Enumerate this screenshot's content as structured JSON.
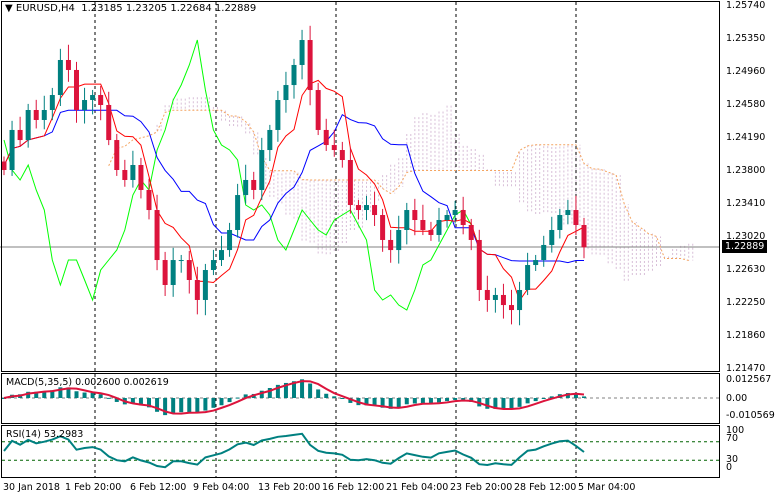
{
  "header": {
    "symbol": "EURUSD,H4",
    "open": "1.23185",
    "high": "1.23205",
    "low": "1.22684",
    "close": "1.22889",
    "menu_icon": "triangle-down-icon"
  },
  "price_axis": [
    "1.25740",
    "1.25350",
    "1.24960",
    "1.24580",
    "1.24190",
    "1.23800",
    "1.23410",
    "1.23020",
    "1.22630",
    "1.22250",
    "1.21860",
    "1.21470"
  ],
  "current_price": "1.22889",
  "macd": {
    "label": "MACD(5,35,5) 0.002600 0.002619",
    "axis": [
      "0.012567",
      "0.00",
      "-0.010569"
    ],
    "colors": {
      "histogram": "#008080",
      "signal": "#dc143c"
    }
  },
  "rsi": {
    "label": "RSI(14) 53.2983",
    "axis": [
      "100",
      "70",
      "30",
      "0"
    ],
    "color": "#008080",
    "level_color": "#006400"
  },
  "time_axis": [
    "30 Jan 2018",
    "1 Feb 20:00",
    "6 Feb 12:00",
    "9 Feb 04:00",
    "13 Feb 20:00",
    "16 Feb 12:00",
    "21 Feb 04:00",
    "23 Feb 20:00",
    "28 Feb 12:00",
    "5 Mar 04:00"
  ],
  "chart_data": {
    "type": "candlestick",
    "symbol": "EURUSD",
    "timeframe": "H4",
    "ylim": [
      1.2147,
      1.2574
    ],
    "closes": [
      1.23802,
      1.24275,
      1.24156,
      1.24511,
      1.24393,
      1.24511,
      1.24688,
      1.25102,
      1.24984,
      1.24511,
      1.24629,
      1.24688,
      1.2457,
      1.24156,
      1.23802,
      1.23684,
      1.23861,
      1.23566,
      1.23329,
      1.22738,
      1.22443,
      1.22738,
      1.22738,
      1.22502,
      1.22266,
      1.2262,
      1.22738,
      1.22856,
      1.23093,
      1.23506,
      1.23684,
      1.23566,
      1.24038,
      1.24275,
      1.24629,
      1.24806,
      1.25043,
      1.25338,
      1.24747,
      1.24275,
      1.24097,
      1.24038,
      1.2392,
      1.23388,
      1.23329,
      1.23388,
      1.2327,
      1.22975,
      1.22856,
      1.23093,
      1.23329,
      1.23211,
      1.23093,
      1.23034,
      1.23211,
      1.2327,
      1.23329,
      1.23152,
      1.22975,
      1.22384,
      1.22266,
      1.22325,
      1.22206,
      1.22147,
      1.22384,
      1.22679,
      1.22738,
      1.22916,
      1.23093,
      1.2327,
      1.23329,
      1.23152,
      1.22889
    ],
    "colors": {
      "bull": "#008080",
      "bear": "#dc143c",
      "tenkan": "#ff0000",
      "kijun": "#0000ff",
      "chikou": "#00ff00",
      "cloud": "#d8bfd8",
      "span_b": "#f4a460"
    },
    "grid": "vertical dashed"
  }
}
